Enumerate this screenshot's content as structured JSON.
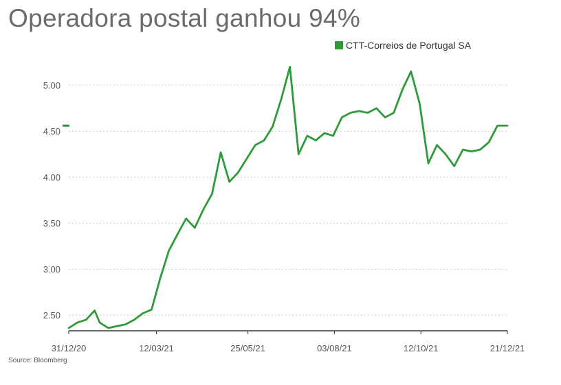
{
  "title": "Operadora postal ganhou 94%",
  "source": "Source: Bloomberg",
  "colors": {
    "line": "#2e9a3a",
    "grid": "#cccccc",
    "axis": "#333333",
    "title": "#6b6b6b"
  },
  "chart_data": {
    "type": "line",
    "title": "Operadora postal ganhou 94%",
    "xlabel": "",
    "ylabel": "",
    "ylim": [
      2.33,
      5.27
    ],
    "yticks": [
      "2.50",
      "3.00",
      "3.50",
      "4.00",
      "4.50",
      "5.00"
    ],
    "xticks": [
      "31/12/20",
      "12/03/21",
      "25/05/21",
      "03/08/21",
      "12/10/21",
      "21/12/21"
    ],
    "legend": {
      "position": "top-right",
      "entries": [
        "CTT-Correios de Portugal SA"
      ]
    },
    "grid": true,
    "series": [
      {
        "name": "CTT-Correios de Portugal SA",
        "x": [
          "31/12/20",
          "07/01/21",
          "14/01/21",
          "21/01/21",
          "25/01/21",
          "01/02/21",
          "08/02/21",
          "15/02/21",
          "22/02/21",
          "01/03/21",
          "08/03/21",
          "15/03/21",
          "22/03/21",
          "29/03/21",
          "05/04/21",
          "12/04/21",
          "19/04/21",
          "26/04/21",
          "03/05/21",
          "10/05/21",
          "17/05/21",
          "24/05/21",
          "31/05/21",
          "07/06/21",
          "14/06/21",
          "21/06/21",
          "28/06/21",
          "05/07/21",
          "12/07/21",
          "19/07/21",
          "26/07/21",
          "02/08/21",
          "09/08/21",
          "16/08/21",
          "23/08/21",
          "30/08/21",
          "06/09/21",
          "13/09/21",
          "20/09/21",
          "27/09/21",
          "04/10/21",
          "11/10/21",
          "18/10/21",
          "25/10/21",
          "01/11/21",
          "08/11/21",
          "15/11/21",
          "22/11/21",
          "29/11/21",
          "06/12/21",
          "13/12/21",
          "21/12/21"
        ],
        "values": [
          2.36,
          2.42,
          2.45,
          2.55,
          2.42,
          2.36,
          2.38,
          2.4,
          2.45,
          2.52,
          2.56,
          2.9,
          3.2,
          3.38,
          3.55,
          3.45,
          3.65,
          3.82,
          4.27,
          3.95,
          4.05,
          4.2,
          4.35,
          4.4,
          4.55,
          4.85,
          5.2,
          4.25,
          4.45,
          4.4,
          4.48,
          4.45,
          4.65,
          4.7,
          4.72,
          4.7,
          4.75,
          4.65,
          4.7,
          4.95,
          5.15,
          4.8,
          4.15,
          4.35,
          4.25,
          4.12,
          4.3,
          4.28,
          4.3,
          4.38,
          4.56,
          4.56
        ]
      }
    ]
  }
}
